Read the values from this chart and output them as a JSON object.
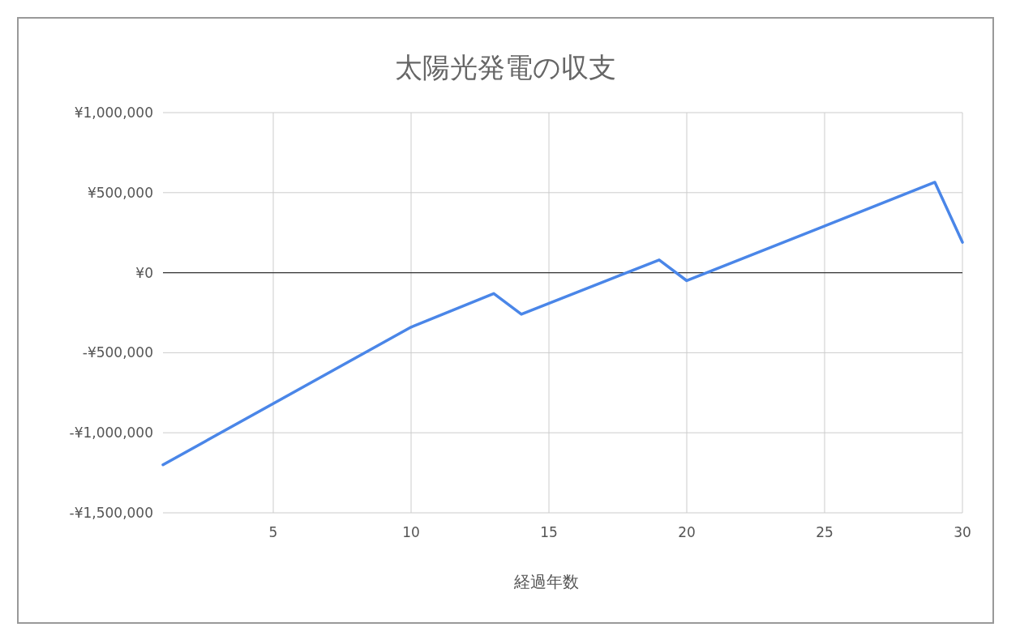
{
  "chart_data": {
    "type": "line",
    "title": "太陽光発電の収支",
    "xlabel": "経過年数",
    "x": [
      1,
      10,
      13,
      14,
      19,
      20,
      29,
      30
    ],
    "series": [
      {
        "color": "#4a86e8",
        "values": [
          -1200000,
          -340000,
          -130000,
          -260000,
          80000,
          -50000,
          565000,
          190000
        ]
      }
    ],
    "xlim": [
      1,
      30
    ],
    "xticks": [
      5,
      10,
      15,
      20,
      25,
      30
    ],
    "ylim": [
      -1500000,
      1000000
    ],
    "yticks": [
      {
        "value": -1500000,
        "label": "-¥1,500,000"
      },
      {
        "value": -1000000,
        "label": "-¥1,000,000"
      },
      {
        "value": -500000,
        "label": "-¥500,000"
      },
      {
        "value": 0,
        "label": "¥0"
      },
      {
        "value": 500000,
        "label": "¥500,000"
      },
      {
        "value": 1000000,
        "label": "¥1,000,000"
      }
    ],
    "ref_lines": [
      {
        "axis": "y",
        "value": 0,
        "color": "#333333"
      }
    ],
    "grid": true,
    "marker": "none",
    "line_style": "solid"
  }
}
